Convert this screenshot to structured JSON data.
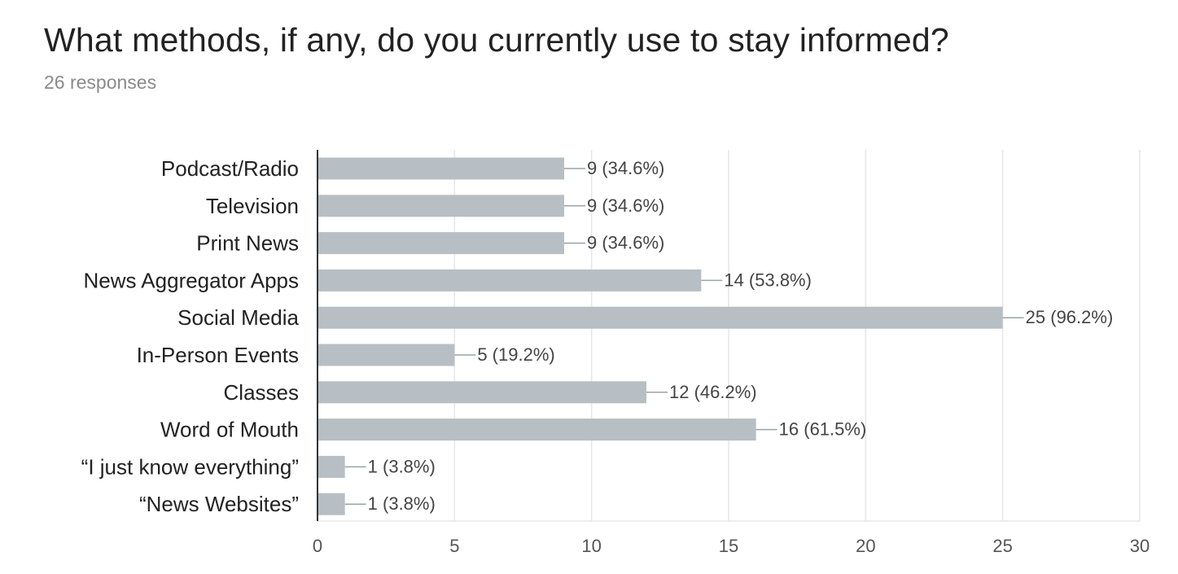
{
  "question": {
    "title": "What methods, if any, do you currently use to stay informed?",
    "responses": "26 responses"
  },
  "colors": {
    "bar": "#b7bfc4",
    "grid": "#e6e6e6",
    "axis": "#333333",
    "leader": "#9aa3a8"
  },
  "chart_data": {
    "type": "bar",
    "orientation": "horizontal",
    "categories": [
      "Podcast/Radio",
      "Television",
      "Print News",
      "News Aggregator Apps",
      "Social Media",
      "In-Person Events",
      "Classes",
      "Word of Mouth",
      "“I just know everything”",
      "“News Websites”"
    ],
    "values": [
      9,
      9,
      9,
      14,
      25,
      5,
      12,
      16,
      1,
      1
    ],
    "data_labels": [
      "9 (34.6%)",
      "9 (34.6%)",
      "9 (34.6%)",
      "14 (53.8%)",
      "25 (96.2%)",
      "5 (19.2%)",
      "12 (46.2%)",
      "16 (61.5%)",
      "1 (3.8%)",
      "1 (3.8%)"
    ],
    "xlim": [
      0,
      30
    ],
    "xticks": [
      0,
      5,
      10,
      15,
      20,
      25,
      30
    ],
    "grid": true,
    "legend": "none"
  }
}
